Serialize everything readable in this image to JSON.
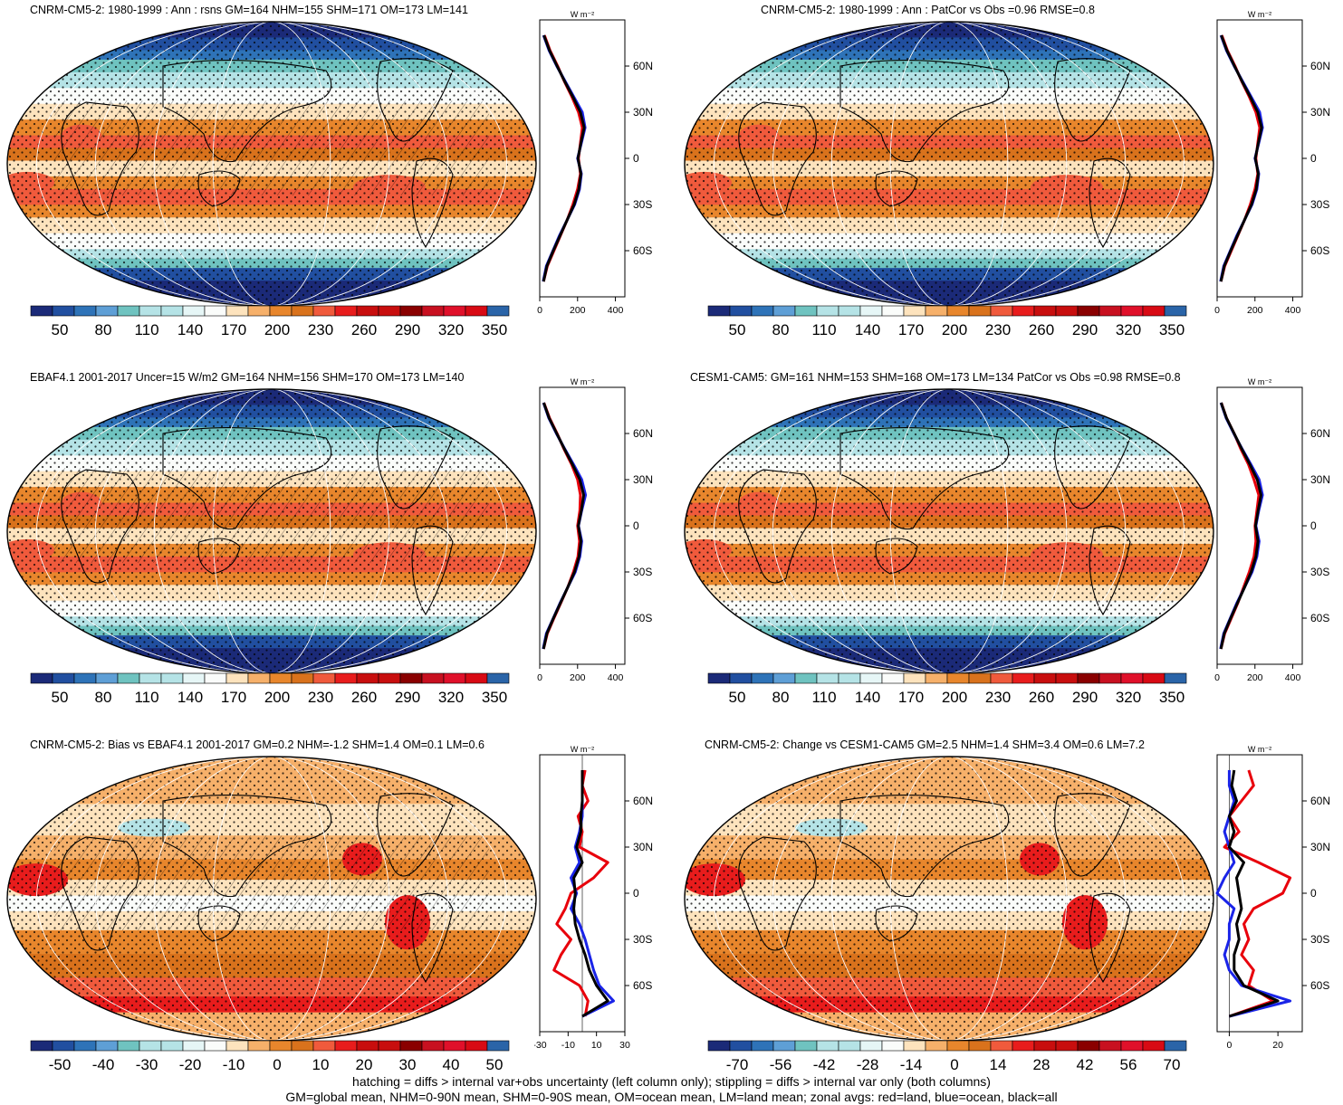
{
  "footer": {
    "line1": "hatching = diffs > internal var+obs uncertainty (left column only); stippling = diffs > internal var only (both columns)",
    "line2": "GM=global mean, NHM=0-90N mean, SHM=0-90S mean, OM=ocean mean, LM=land mean; zonal avgs: red=land, blue=ocean, black=all"
  },
  "colors": {
    "palette": [
      "#1b2a78",
      "#214fa0",
      "#2e73b8",
      "#5e9fd6",
      "#6fc3c0",
      "#b5e3e6",
      "#e6f6f6",
      "#fafcfa",
      "#fde3bd",
      "#f6b06a",
      "#e8862c",
      "#d9721c",
      "#f05a3c",
      "#e81c1c",
      "#c80e0e",
      "#8a0000",
      "#c81020",
      "#e0102a",
      "#d80a14",
      "#2a64a8"
    ],
    "line_land": "#e8000b",
    "line_ocean": "#1a24e8",
    "line_all": "#000000"
  },
  "chart_data": [
    {
      "type": "heatmap",
      "title": "CNRM-CM5-2: 1980-1999 : Ann : rsns GM=164 NHM=155 SHM=171 OM=173 LM=141",
      "colorbar_labels": [
        "50",
        "80",
        "110",
        "140",
        "170",
        "200",
        "230",
        "260",
        "290",
        "320",
        "350"
      ],
      "colorbar_min": 50,
      "colorbar_max": 350,
      "hatching": true,
      "stippling": true,
      "zonal": {
        "unit": "W m⁻²",
        "xlim": [
          0,
          450
        ],
        "xticks": [
          "0",
          "200",
          "400"
        ],
        "yticks": [
          "60N",
          "30N",
          "0",
          "30S",
          "60S"
        ],
        "lat": [
          -80,
          -70,
          -60,
          -50,
          -40,
          -30,
          -20,
          -10,
          0,
          10,
          20,
          30,
          40,
          50,
          60,
          70,
          80
        ],
        "land": [
          20,
          40,
          75,
          110,
          145,
          175,
          200,
          215,
          205,
          215,
          225,
          205,
          170,
          130,
          95,
          55,
          25
        ],
        "ocean": [
          18,
          35,
          70,
          105,
          145,
          185,
          210,
          220,
          200,
          220,
          240,
          225,
          180,
          135,
          90,
          50,
          20
        ],
        "all": [
          20,
          38,
          72,
          108,
          145,
          182,
          207,
          218,
          202,
          218,
          235,
          215,
          175,
          132,
          92,
          52,
          22
        ]
      }
    },
    {
      "type": "heatmap",
      "title": "CNRM-CM5-2: 1980-1999 : Ann : PatCor vs Obs =0.96 RMSE=0.8",
      "colorbar_labels": [
        "50",
        "80",
        "110",
        "140",
        "170",
        "200",
        "230",
        "260",
        "290",
        "320",
        "350"
      ],
      "colorbar_min": 50,
      "colorbar_max": 350,
      "hatching": false,
      "stippling": true,
      "zonal": {
        "unit": "W m⁻²",
        "xlim": [
          0,
          450
        ],
        "xticks": [
          "0",
          "200",
          "400"
        ],
        "yticks": [
          "60N",
          "30N",
          "0",
          "30S",
          "60S"
        ],
        "lat": [
          -80,
          -70,
          -60,
          -50,
          -40,
          -30,
          -20,
          -10,
          0,
          10,
          20,
          30,
          40,
          50,
          60,
          70,
          80
        ],
        "land": [
          20,
          40,
          75,
          110,
          145,
          175,
          200,
          215,
          205,
          215,
          225,
          205,
          170,
          130,
          95,
          55,
          25
        ],
        "ocean": [
          18,
          35,
          70,
          105,
          145,
          185,
          210,
          220,
          200,
          220,
          240,
          225,
          180,
          135,
          90,
          50,
          20
        ],
        "all": [
          20,
          38,
          72,
          108,
          145,
          182,
          207,
          218,
          202,
          218,
          235,
          215,
          175,
          132,
          92,
          52,
          22
        ]
      }
    },
    {
      "type": "heatmap",
      "title": "EBAF4.1 2001-2017 Uncer=15 W/m2 GM=164 NHM=156 SHM=170 OM=173 LM=140",
      "colorbar_labels": [
        "50",
        "80",
        "110",
        "140",
        "170",
        "200",
        "230",
        "260",
        "290",
        "320",
        "350"
      ],
      "colorbar_min": 50,
      "colorbar_max": 350,
      "hatching": true,
      "stippling": true,
      "zonal": {
        "unit": "W m⁻²",
        "xlim": [
          0,
          450
        ],
        "xticks": [
          "0",
          "200",
          "400"
        ],
        "yticks": [
          "60N",
          "30N",
          "0",
          "30S",
          "60S"
        ],
        "lat": [
          -80,
          -70,
          -60,
          -50,
          -40,
          -30,
          -20,
          -10,
          0,
          10,
          20,
          30,
          40,
          50,
          60,
          70,
          80
        ],
        "land": [
          20,
          40,
          75,
          112,
          148,
          178,
          202,
          210,
          200,
          212,
          215,
          200,
          168,
          128,
          92,
          52,
          22
        ],
        "ocean": [
          18,
          35,
          72,
          108,
          148,
          188,
          212,
          222,
          205,
          222,
          242,
          222,
          178,
          132,
          88,
          48,
          20
        ],
        "all": [
          20,
          38,
          73,
          110,
          148,
          184,
          208,
          218,
          204,
          220,
          232,
          212,
          173,
          130,
          90,
          50,
          21
        ]
      }
    },
    {
      "type": "heatmap",
      "title": "CESM1-CAM5: GM=161 NHM=153 SHM=168 OM=173 LM=134 PatCor vs Obs =0.98 RMSE=0.8",
      "colorbar_labels": [
        "50",
        "80",
        "110",
        "140",
        "170",
        "200",
        "230",
        "260",
        "290",
        "320",
        "350"
      ],
      "colorbar_min": 50,
      "colorbar_max": 350,
      "hatching": false,
      "stippling": true,
      "zonal": {
        "unit": "W m⁻²",
        "xlim": [
          0,
          450
        ],
        "xticks": [
          "0",
          "200",
          "400"
        ],
        "yticks": [
          "60N",
          "30N",
          "0",
          "30S",
          "60S"
        ],
        "lat": [
          -80,
          -70,
          -60,
          -50,
          -40,
          -30,
          -20,
          -10,
          0,
          10,
          20,
          30,
          40,
          50,
          60,
          70,
          80
        ],
        "land": [
          20,
          40,
          75,
          110,
          140,
          170,
          195,
          205,
          200,
          210,
          220,
          195,
          165,
          125,
          90,
          50,
          22
        ],
        "ocean": [
          18,
          35,
          70,
          105,
          145,
          185,
          210,
          222,
          205,
          220,
          240,
          222,
          178,
          132,
          88,
          48,
          20
        ],
        "all": [
          20,
          38,
          72,
          108,
          145,
          180,
          205,
          216,
          203,
          217,
          232,
          212,
          173,
          130,
          90,
          50,
          21
        ]
      }
    },
    {
      "type": "heatmap",
      "title": "CNRM-CM5-2: Bias vs EBAF4.1 2001-2017 GM=0.2 NHM=-1.2 SHM=1.4 OM=0.1 LM=0.6",
      "colorbar_labels": [
        "-50",
        "-40",
        "-30",
        "-20",
        "-10",
        "0",
        "10",
        "20",
        "30",
        "40",
        "50"
      ],
      "colorbar_min": -50,
      "colorbar_max": 50,
      "hatching": true,
      "stippling": true,
      "zonal": {
        "unit": "W m⁻²",
        "xlim": [
          -30,
          30
        ],
        "xticks": [
          "-30",
          "-10",
          "10",
          "30"
        ],
        "yticks": [
          "60N",
          "30N",
          "0",
          "30S",
          "60S"
        ],
        "lat": [
          -80,
          -70,
          -60,
          -50,
          -40,
          -30,
          -20,
          -10,
          0,
          10,
          20,
          30,
          40,
          50,
          60,
          70,
          80
        ],
        "land": [
          2,
          4,
          -2,
          -20,
          -15,
          -8,
          -18,
          -12,
          -8,
          8,
          18,
          -2,
          0,
          -3,
          4,
          0,
          2
        ],
        "ocean": [
          0,
          22,
          12,
          8,
          5,
          2,
          -2,
          -8,
          -4,
          -8,
          -2,
          -5,
          -2,
          0,
          0,
          0,
          0
        ],
        "all": [
          0,
          18,
          10,
          5,
          2,
          -2,
          -5,
          -6,
          -5,
          -6,
          0,
          -4,
          -1,
          -1,
          0,
          0,
          0
        ]
      }
    },
    {
      "type": "heatmap",
      "title": "CNRM-CM5-2: Change vs CESM1-CAM5 GM=2.5 NHM=1.4 SHM=3.4 OM=0.6 LM=7.2",
      "colorbar_labels": [
        "-70",
        "-56",
        "-42",
        "-28",
        "-14",
        "0",
        "14",
        "28",
        "42",
        "56",
        "70"
      ],
      "colorbar_min": -70,
      "colorbar_max": 70,
      "hatching": false,
      "stippling": true,
      "zonal": {
        "unit": "W m⁻²",
        "xlim": [
          -5,
          30
        ],
        "xticks": [
          "0",
          "20"
        ],
        "yticks": [
          "60N",
          "30N",
          "0",
          "30S",
          "60S"
        ],
        "lat": [
          -80,
          -70,
          -60,
          -50,
          -40,
          -30,
          -20,
          -10,
          0,
          10,
          20,
          30,
          40,
          50,
          60,
          70,
          80
        ],
        "land": [
          0,
          18,
          8,
          10,
          5,
          8,
          6,
          10,
          22,
          25,
          12,
          -2,
          4,
          0,
          5,
          10,
          8
        ],
        "ocean": [
          0,
          25,
          5,
          0,
          -2,
          0,
          0,
          2,
          -5,
          -2,
          2,
          0,
          -2,
          0,
          2,
          0,
          0
        ],
        "all": [
          0,
          20,
          6,
          2,
          2,
          4,
          3,
          5,
          4,
          3,
          6,
          0,
          2,
          0,
          3,
          1,
          2
        ]
      }
    }
  ]
}
